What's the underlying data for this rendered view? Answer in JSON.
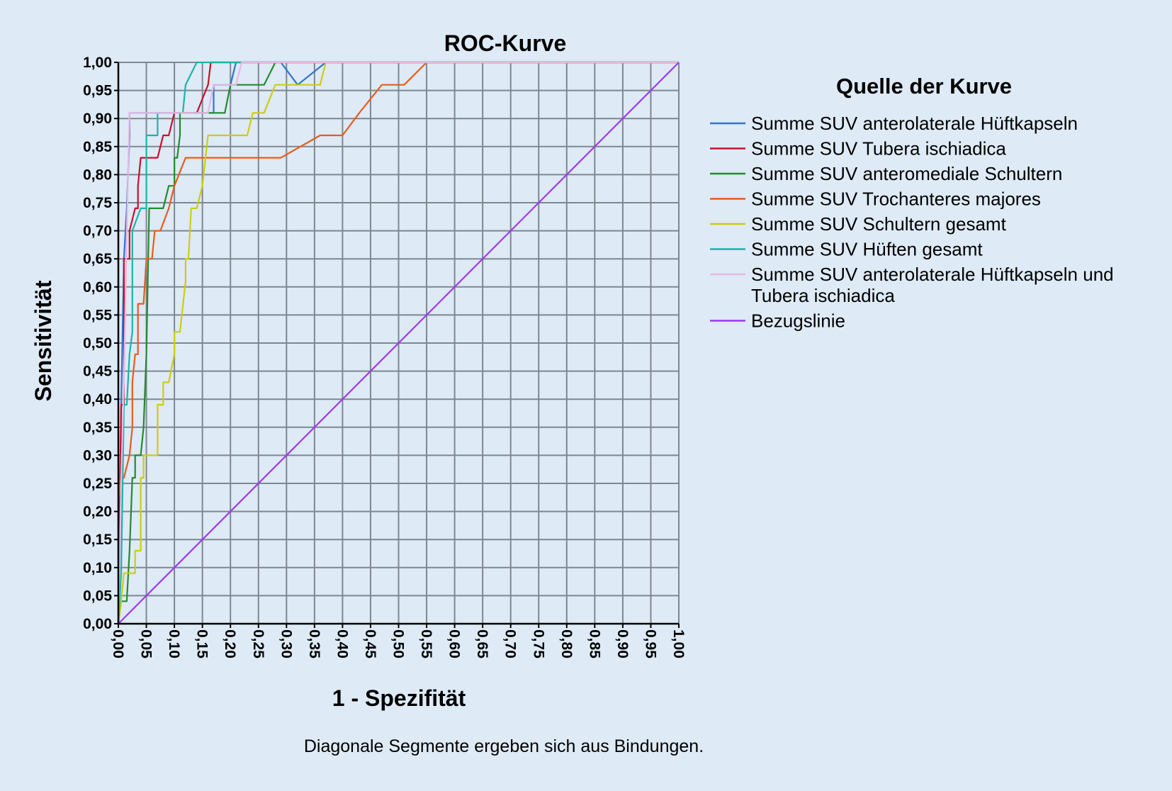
{
  "chart_data": {
    "type": "line",
    "title": "ROC-Kurve",
    "xlabel": "1 - Spezifität",
    "ylabel": "Sensitivität",
    "xlim": [
      0,
      1
    ],
    "ylim": [
      0,
      1
    ],
    "grid": true,
    "x_ticks": [
      "0,00",
      "0,05",
      "0,10",
      "0,15",
      "0,20",
      "0,25",
      "0,30",
      "0,35",
      "0,40",
      "0,45",
      "0,50",
      "0,55",
      "0,60",
      "0,65",
      "0,70",
      "0,75",
      "0,80",
      "0,85",
      "0,90",
      "0,95",
      "1,00"
    ],
    "y_ticks": [
      "0,00",
      "0,05",
      "0,10",
      "0,15",
      "0,20",
      "0,25",
      "0,30",
      "0,35",
      "0,40",
      "0,45",
      "0,50",
      "0,55",
      "0,60",
      "0,65",
      "0,70",
      "0,75",
      "0,80",
      "0,85",
      "0,90",
      "0,95",
      "1,00"
    ],
    "legend_title": "Quelle der Kurve",
    "legend_position": "right",
    "note": "Diagonale Segmente ergeben sich aus Bindungen.",
    "series": [
      {
        "name": "Summe SUV anterolaterale Hüftkapseln",
        "legend_lines": [
          "Summe SUV anterolaterale Hüftkapseln"
        ],
        "color": "#2f74d0",
        "points": [
          [
            0,
            0
          ],
          [
            0.005,
            0.39
          ],
          [
            0.01,
            0.65
          ],
          [
            0.015,
            0.74
          ],
          [
            0.02,
            0.87
          ],
          [
            0.02,
            0.91
          ],
          [
            0.11,
            0.91
          ],
          [
            0.13,
            0.91
          ],
          [
            0.17,
            0.91
          ],
          [
            0.17,
            0.96
          ],
          [
            0.2,
            0.96
          ],
          [
            0.21,
            1.0
          ],
          [
            0.29,
            1.0
          ],
          [
            0.32,
            0.96
          ],
          [
            0.37,
            1.0
          ],
          [
            1,
            1
          ]
        ]
      },
      {
        "name": "Summe SUV Tubera ischiadica",
        "legend_lines": [
          "Summe SUV Tubera ischiadica"
        ],
        "color": "#c8102e",
        "points": [
          [
            0,
            0
          ],
          [
            0.005,
            0.39
          ],
          [
            0.01,
            0.39
          ],
          [
            0.01,
            0.65
          ],
          [
            0.02,
            0.65
          ],
          [
            0.02,
            0.7
          ],
          [
            0.03,
            0.74
          ],
          [
            0.035,
            0.74
          ],
          [
            0.035,
            0.78
          ],
          [
            0.04,
            0.83
          ],
          [
            0.05,
            0.83
          ],
          [
            0.07,
            0.83
          ],
          [
            0.08,
            0.87
          ],
          [
            0.09,
            0.87
          ],
          [
            0.1,
            0.91
          ],
          [
            0.14,
            0.91
          ],
          [
            0.16,
            0.96
          ],
          [
            0.165,
            1.0
          ],
          [
            1,
            1
          ]
        ]
      },
      {
        "name": "Summe SUV anteromediale Schultern",
        "legend_lines": [
          "Summe SUV anteromediale Schultern"
        ],
        "color": "#238b2c",
        "points": [
          [
            0,
            0
          ],
          [
            0.005,
            0.04
          ],
          [
            0.015,
            0.04
          ],
          [
            0.02,
            0.13
          ],
          [
            0.025,
            0.26
          ],
          [
            0.03,
            0.26
          ],
          [
            0.03,
            0.3
          ],
          [
            0.04,
            0.3
          ],
          [
            0.045,
            0.35
          ],
          [
            0.05,
            0.48
          ],
          [
            0.055,
            0.74
          ],
          [
            0.08,
            0.74
          ],
          [
            0.09,
            0.78
          ],
          [
            0.1,
            0.78
          ],
          [
            0.1,
            0.83
          ],
          [
            0.105,
            0.83
          ],
          [
            0.11,
            0.87
          ],
          [
            0.11,
            0.91
          ],
          [
            0.17,
            0.91
          ],
          [
            0.19,
            0.91
          ],
          [
            0.2,
            0.96
          ],
          [
            0.26,
            0.96
          ],
          [
            0.28,
            1.0
          ],
          [
            1,
            1
          ]
        ]
      },
      {
        "name": "Summe SUV Trochanteres majores",
        "legend_lines": [
          "Summe SUV Trochanteres majores"
        ],
        "color": "#e85c1a",
        "points": [
          [
            0,
            0
          ],
          [
            0,
            0.22
          ],
          [
            0.005,
            0.26
          ],
          [
            0.01,
            0.26
          ],
          [
            0.02,
            0.3
          ],
          [
            0.025,
            0.35
          ],
          [
            0.025,
            0.43
          ],
          [
            0.03,
            0.48
          ],
          [
            0.035,
            0.48
          ],
          [
            0.035,
            0.57
          ],
          [
            0.045,
            0.57
          ],
          [
            0.05,
            0.65
          ],
          [
            0.06,
            0.65
          ],
          [
            0.065,
            0.7
          ],
          [
            0.075,
            0.7
          ],
          [
            0.09,
            0.74
          ],
          [
            0.1,
            0.78
          ],
          [
            0.12,
            0.83
          ],
          [
            0.29,
            0.83
          ],
          [
            0.36,
            0.87
          ],
          [
            0.4,
            0.87
          ],
          [
            0.43,
            0.91
          ],
          [
            0.47,
            0.96
          ],
          [
            0.51,
            0.96
          ],
          [
            0.55,
            1.0
          ],
          [
            1,
            1
          ]
        ]
      },
      {
        "name": "Summe SUV Schultern gesamt",
        "legend_lines": [
          "Summe SUV Schultern gesamt"
        ],
        "color": "#cfcc10",
        "points": [
          [
            0,
            0
          ],
          [
            0.005,
            0.04
          ],
          [
            0.01,
            0.09
          ],
          [
            0.03,
            0.09
          ],
          [
            0.03,
            0.13
          ],
          [
            0.04,
            0.13
          ],
          [
            0.04,
            0.26
          ],
          [
            0.045,
            0.26
          ],
          [
            0.045,
            0.3
          ],
          [
            0.07,
            0.3
          ],
          [
            0.07,
            0.39
          ],
          [
            0.08,
            0.39
          ],
          [
            0.08,
            0.43
          ],
          [
            0.09,
            0.43
          ],
          [
            0.1,
            0.48
          ],
          [
            0.1,
            0.52
          ],
          [
            0.11,
            0.52
          ],
          [
            0.12,
            0.61
          ],
          [
            0.12,
            0.65
          ],
          [
            0.125,
            0.65
          ],
          [
            0.13,
            0.74
          ],
          [
            0.14,
            0.74
          ],
          [
            0.15,
            0.78
          ],
          [
            0.16,
            0.87
          ],
          [
            0.23,
            0.87
          ],
          [
            0.24,
            0.91
          ],
          [
            0.26,
            0.91
          ],
          [
            0.28,
            0.96
          ],
          [
            0.36,
            0.96
          ],
          [
            0.37,
            1.0
          ],
          [
            1,
            1
          ]
        ]
      },
      {
        "name": "Summe SUV Hüften gesamt",
        "legend_lines": [
          "Summe SUV Hüften gesamt"
        ],
        "color": "#19b5a8",
        "points": [
          [
            0,
            0
          ],
          [
            0.005,
            0.09
          ],
          [
            0.01,
            0.39
          ],
          [
            0.015,
            0.39
          ],
          [
            0.02,
            0.48
          ],
          [
            0.025,
            0.52
          ],
          [
            0.025,
            0.7
          ],
          [
            0.04,
            0.74
          ],
          [
            0.05,
            0.74
          ],
          [
            0.05,
            0.87
          ],
          [
            0.07,
            0.87
          ],
          [
            0.07,
            0.91
          ],
          [
            0.11,
            0.91
          ],
          [
            0.115,
            0.91
          ],
          [
            0.12,
            0.96
          ],
          [
            0.14,
            1.0
          ],
          [
            1,
            1
          ]
        ]
      },
      {
        "name": "Summe SUV anterolaterale Hüftkapseln und Tubera ischiadica",
        "legend_lines": [
          "Summe SUV anterolaterale Hüftkapseln und",
          "Tubera ischiadica"
        ],
        "color": "#e6b8e3",
        "points": [
          [
            0,
            0
          ],
          [
            0.005,
            0.26
          ],
          [
            0.01,
            0.43
          ],
          [
            0.015,
            0.7
          ],
          [
            0.02,
            0.91
          ],
          [
            0.16,
            0.91
          ],
          [
            0.17,
            0.96
          ],
          [
            0.21,
            0.96
          ],
          [
            0.22,
            1.0
          ],
          [
            1,
            1
          ]
        ]
      },
      {
        "name": "Bezugslinie",
        "legend_lines": [
          "Bezugslinie"
        ],
        "color": "#9b3bf0",
        "points": [
          [
            0,
            0
          ],
          [
            1,
            1
          ]
        ]
      }
    ]
  }
}
